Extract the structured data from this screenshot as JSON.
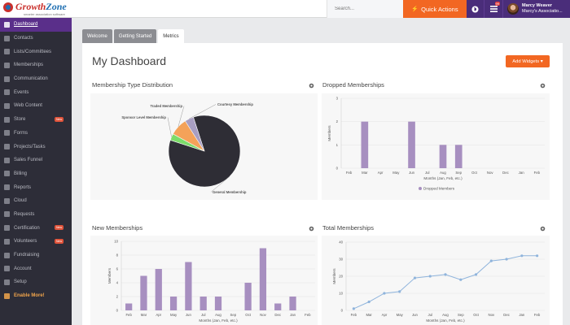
{
  "brand": {
    "name_part1": "Growth",
    "name_part2": "Zone",
    "tagline": "smarter association software"
  },
  "topbar": {
    "search_placeholder": "Search...",
    "quick_actions_label": "Quick Actions",
    "notifications_count": "99",
    "user_name": "Marcy Weaver",
    "user_org": "Marcy's Associatio..."
  },
  "sidebar": {
    "items": [
      {
        "label": "Dashboard",
        "icon": "dashboard-icon",
        "active": true
      },
      {
        "label": "Contacts",
        "icon": "contacts-icon"
      },
      {
        "label": "Lists/Committees",
        "icon": "lists-icon"
      },
      {
        "label": "Memberships",
        "icon": "heart-icon"
      },
      {
        "label": "Communication",
        "icon": "envelope-icon"
      },
      {
        "label": "Events",
        "icon": "calendar-icon"
      },
      {
        "label": "Web Content",
        "icon": "web-icon"
      },
      {
        "label": "Store",
        "icon": "cart-icon",
        "badge": "New"
      },
      {
        "label": "Forms",
        "icon": "forms-icon"
      },
      {
        "label": "Projects/Tasks",
        "icon": "tasks-icon"
      },
      {
        "label": "Sales Funnel",
        "icon": "funnel-icon"
      },
      {
        "label": "Billing",
        "icon": "billing-icon"
      },
      {
        "label": "Reports",
        "icon": "reports-icon"
      },
      {
        "label": "Cloud",
        "icon": "cloud-icon"
      },
      {
        "label": "Requests",
        "icon": "requests-icon"
      },
      {
        "label": "Certification",
        "icon": "certification-icon",
        "badge": "New"
      },
      {
        "label": "Volunteers",
        "icon": "volunteers-icon",
        "badge": "New"
      },
      {
        "label": "Fundraising",
        "icon": "fundraising-icon"
      },
      {
        "label": "Account",
        "icon": "account-icon"
      },
      {
        "label": "Setup",
        "icon": "setup-icon"
      },
      {
        "label": "Enable More!",
        "icon": "enable-icon",
        "highlight": true
      }
    ]
  },
  "tabs": [
    {
      "label": "Welcome",
      "active": false
    },
    {
      "label": "Getting Started",
      "active": false
    },
    {
      "label": "Metrics",
      "active": true
    }
  ],
  "page": {
    "title": "My Dashboard",
    "add_widgets_label": "Add Widgets ▾"
  },
  "widgets": {
    "membership_type": {
      "title": "Membership Type Distribution"
    },
    "dropped": {
      "title": "Dropped Memberships"
    },
    "new": {
      "title": "New Memberships"
    },
    "total": {
      "title": "Total Memberships"
    }
  },
  "colors": {
    "accent_orange": "#f26722",
    "brand_purple": "#4a2d7a",
    "sidebar_bg": "#2d2d38",
    "bar_purple": "#a78fc0",
    "line_blue": "#8fb4dc"
  },
  "chart_data": [
    {
      "id": "membership_type",
      "type": "pie",
      "slices": [
        {
          "name": "General Membership",
          "value": 85,
          "color": "#2e2d35"
        },
        {
          "name": "Sponsor Level Membership",
          "value": 3,
          "color": "#7bdc6a"
        },
        {
          "name": "Traded Membership",
          "value": 8,
          "color": "#f4a259"
        },
        {
          "name": "Courtesy Membership",
          "value": 4,
          "color": "#a89ec2"
        }
      ]
    },
    {
      "id": "dropped",
      "type": "bar",
      "categories": [
        "Feb",
        "Mar",
        "Apr",
        "May",
        "Jun",
        "Jul",
        "Aug",
        "Sep",
        "Oct",
        "Nov",
        "Dec",
        "Jan",
        "Feb"
      ],
      "values": [
        0,
        2,
        0,
        0,
        2,
        0,
        1,
        1,
        0,
        0,
        0,
        0,
        0
      ],
      "xlabel": "Months (Jan, Feb, etc.)",
      "ylabel": "Members",
      "ylim": [
        0,
        3
      ],
      "yticks": [
        0,
        1,
        2,
        3
      ],
      "legend": "Dropped Members",
      "color": "#a78fc0"
    },
    {
      "id": "new",
      "type": "bar",
      "categories": [
        "Feb",
        "Mar",
        "Apr",
        "May",
        "Jun",
        "Jul",
        "Aug",
        "Sep",
        "Oct",
        "Nov",
        "Dec",
        "Jan",
        "Feb"
      ],
      "values": [
        1,
        5,
        6,
        2,
        7,
        2,
        2,
        0,
        4,
        9,
        1,
        2,
        0
      ],
      "xlabel": "Months (Jan, Feb, etc.)",
      "ylabel": "Members",
      "ylim": [
        0,
        10
      ],
      "yticks": [
        0,
        2,
        4,
        6,
        8,
        10
      ],
      "color": "#a78fc0"
    },
    {
      "id": "total",
      "type": "line",
      "categories": [
        "Feb",
        "Mar",
        "Apr",
        "May",
        "Jun",
        "Jul",
        "Aug",
        "Sep",
        "Oct",
        "Nov",
        "Dec",
        "Jan",
        "Feb"
      ],
      "values": [
        1,
        5,
        10,
        11,
        19,
        20,
        21,
        18,
        21,
        29,
        30,
        32,
        32
      ],
      "xlabel": "Months (Jan, Feb, etc.)",
      "ylabel": "Members",
      "ylim": [
        0,
        40
      ],
      "yticks": [
        0,
        10,
        20,
        30,
        40
      ],
      "color": "#8fb4dc"
    }
  ]
}
